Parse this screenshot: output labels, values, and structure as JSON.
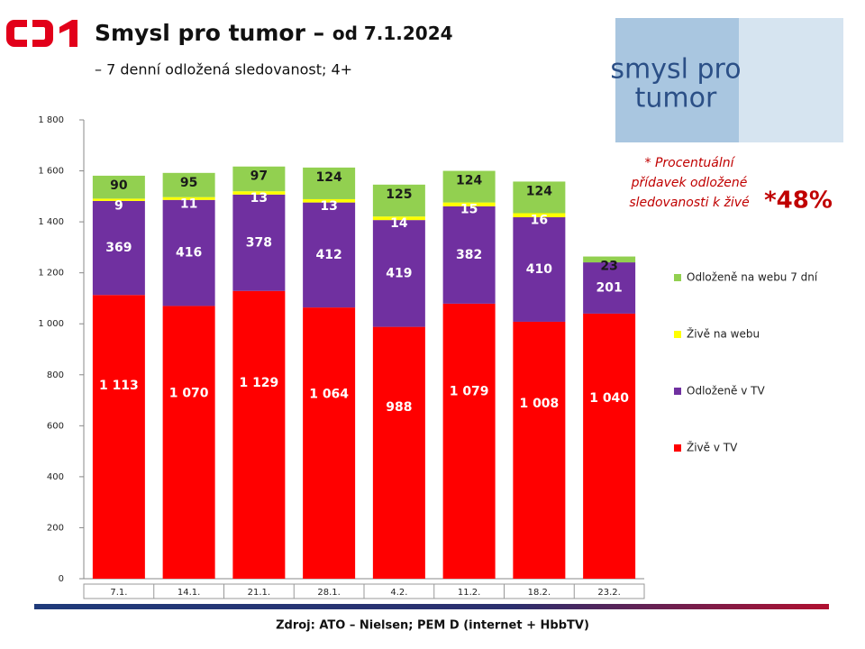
{
  "slide": {
    "title": "Smysl pro tumor –",
    "title_date": "od 7.1.2024",
    "subtitle": "– 7 denní odložená sledovanost; 4+",
    "image_text": [
      "smysl pro",
      "tumor"
    ],
    "note": [
      "* Procentuální",
      "přídavek odložené",
      "sledovanosti k živé"
    ],
    "percent": "*48%",
    "source": "Zdroj: ATO – Nielsen; PEM D (internet + HbbTV)"
  },
  "chart_data": {
    "type": "stacked_bar",
    "categories": [
      "7.1.",
      "14.1.",
      "21.1.",
      "28.1.",
      "4.2.",
      "11.2.",
      "18.2.",
      "23.2."
    ],
    "series": [
      {
        "name": "Živě v TV",
        "color": "#ff0000",
        "values": [
          1113,
          1070,
          1129,
          1064,
          988,
          1079,
          1008,
          1040
        ],
        "value_labels": [
          "1 113",
          "1 070",
          "1 129",
          "1 064",
          "988",
          "1 079",
          "1 008",
          "1 040"
        ]
      },
      {
        "name": "Odloženě v TV",
        "color": "#7030a0",
        "values": [
          369,
          416,
          378,
          412,
          419,
          382,
          410,
          201
        ]
      },
      {
        "name": "Živě na webu",
        "color": "#ffff00",
        "values": [
          9,
          11,
          13,
          13,
          14,
          15,
          16,
          null
        ]
      },
      {
        "name": "Odloženě na webu 7 dní",
        "color": "#92d050",
        "values": [
          90,
          95,
          97,
          124,
          125,
          124,
          124,
          23
        ]
      }
    ],
    "ylim": [
      0,
      1800
    ],
    "yticks": [
      0,
      200,
      400,
      600,
      800,
      {
        "value": 1000,
        "label": "1 000"
      },
      {
        "value": 1200,
        "label": "1 200"
      },
      {
        "value": 1400,
        "label": "1 400"
      },
      {
        "value": 1600,
        "label": "1 600"
      },
      {
        "value": 1800,
        "label": "1 800"
      }
    ],
    "grid": false
  }
}
